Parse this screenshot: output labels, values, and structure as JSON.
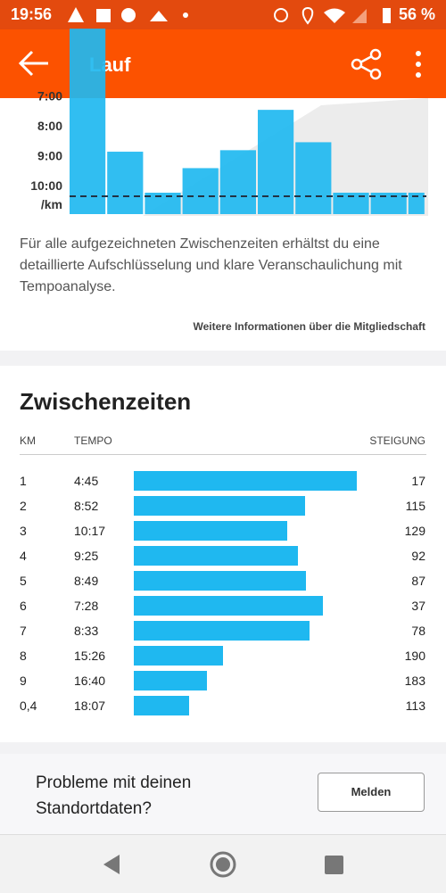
{
  "status_bar": {
    "time": "19:56",
    "battery": "56 %"
  },
  "app_bar": {
    "title": "Lauf"
  },
  "pace_chart": {
    "yticks": [
      "7:00",
      "8:00",
      "9:00",
      "10:00"
    ],
    "unit": "/km"
  },
  "upsell": {
    "text": "Für alle aufgezeichneten Zwischenzeiten erhältst du eine detaillierte Aufschlüsselung und klare Veranschaulichung mit Tempoanalyse.",
    "link": "Weitere Informationen über die Mitgliedschaft"
  },
  "splits": {
    "title": "Zwischenzeiten",
    "columns": [
      "KM",
      "TEMPO",
      "STEIGUNG"
    ],
    "rows": [
      [
        "1",
        "4:45",
        "17"
      ],
      [
        "2",
        "8:52",
        "115"
      ],
      [
        "3",
        "10:17",
        "129"
      ],
      [
        "4",
        "9:25",
        "92"
      ],
      [
        "5",
        "8:49",
        "87"
      ],
      [
        "6",
        "7:28",
        "37"
      ],
      [
        "7",
        "8:33",
        "78"
      ],
      [
        "8",
        "15:26",
        "190"
      ],
      [
        "9",
        "16:40",
        "183"
      ],
      [
        "0,4",
        "18:07",
        "113"
      ]
    ]
  },
  "location_card": {
    "text": "Probleme mit deinen Standortdaten?",
    "button": "Melden"
  }
}
